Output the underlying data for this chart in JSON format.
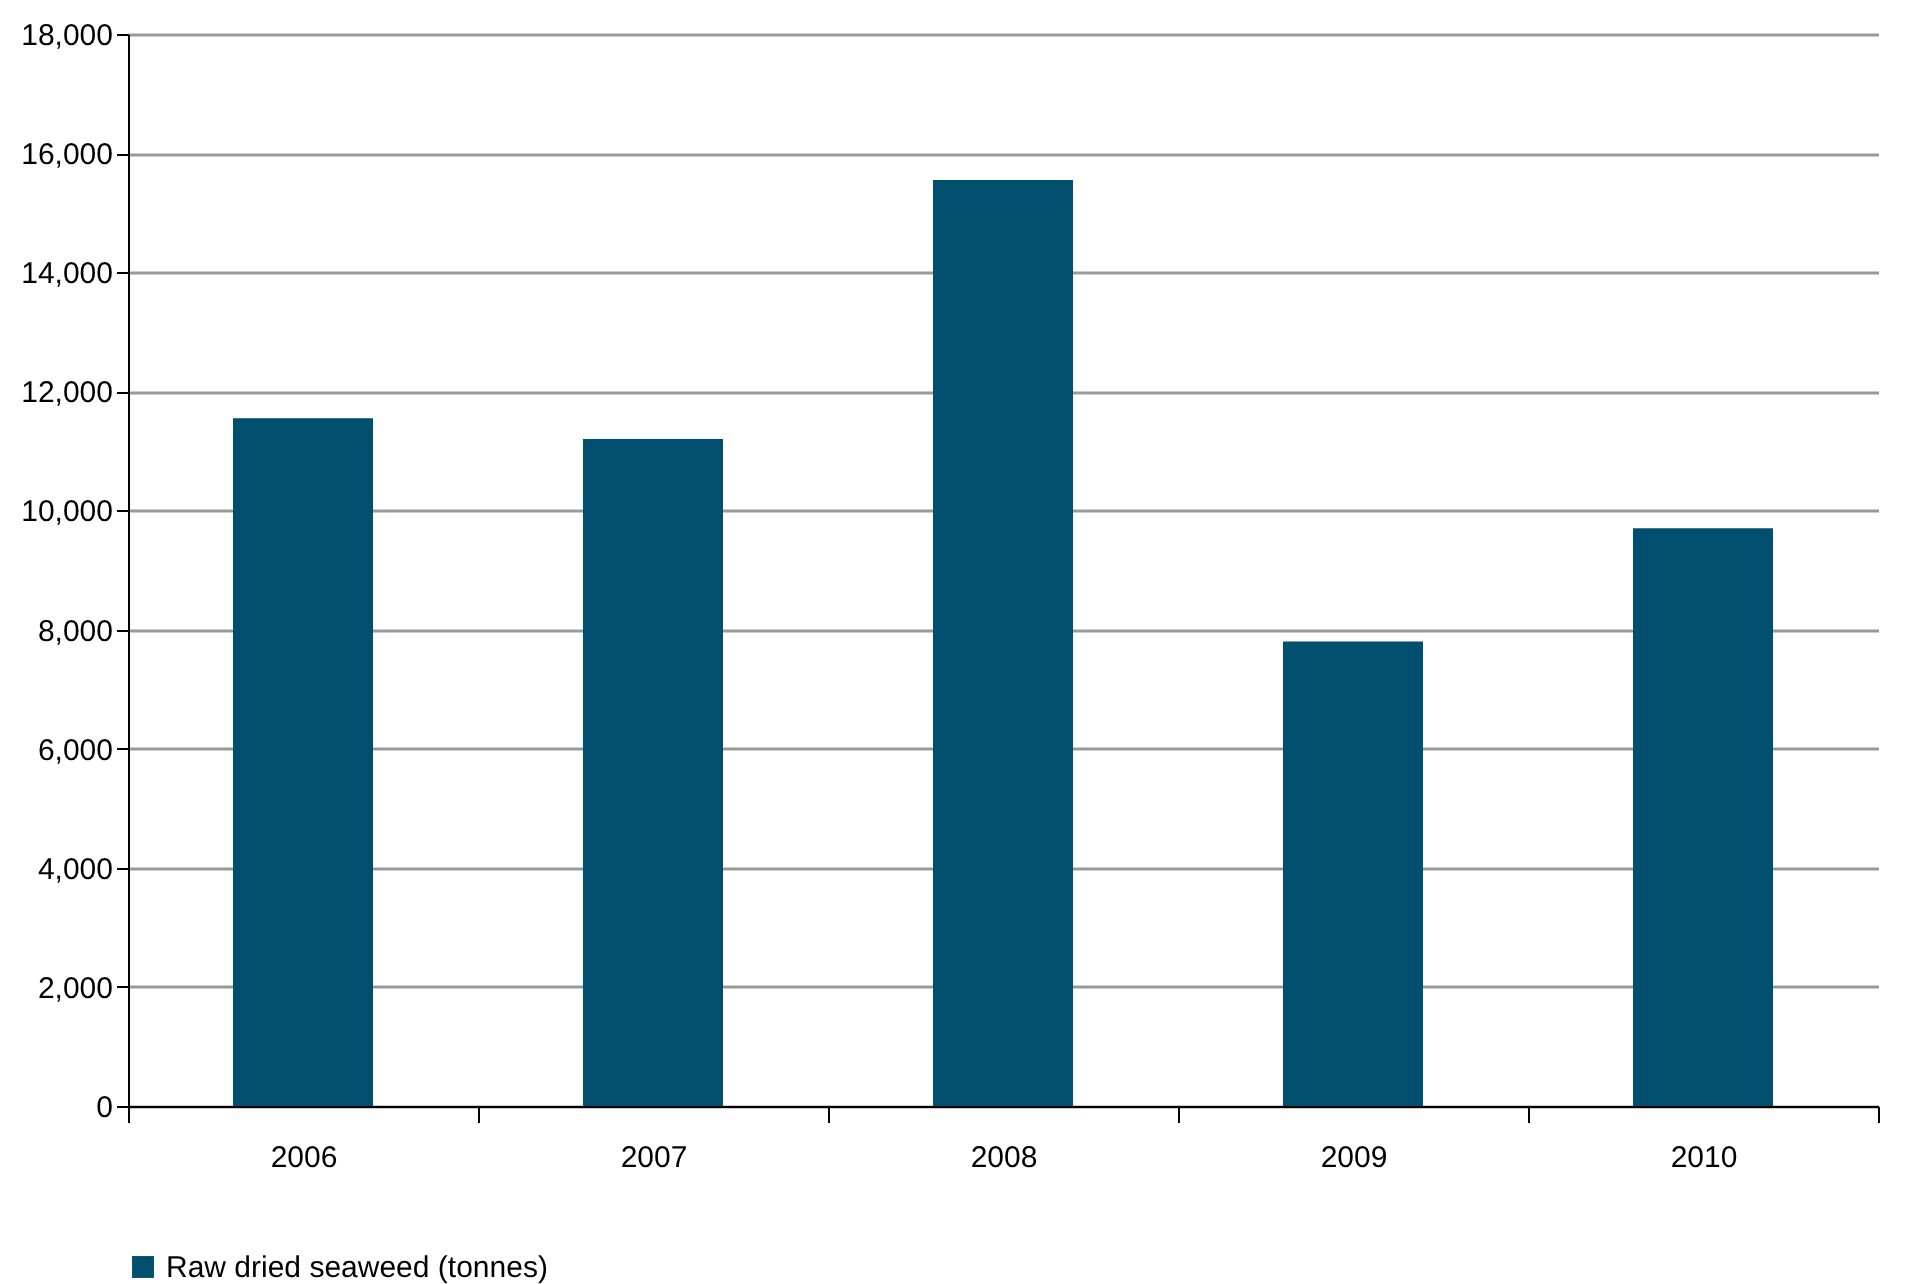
{
  "chart_data": {
    "type": "bar",
    "categories": [
      "2006",
      "2007",
      "2008",
      "2009",
      "2010"
    ],
    "series": [
      {
        "name": "Raw dried seaweed (tonnes)",
        "color": "#004f6e",
        "values": [
          11550,
          11200,
          15550,
          7800,
          9700
        ]
      }
    ],
    "ylim": [
      0,
      18000
    ],
    "yticks": [
      {
        "value": 0,
        "label": "0"
      },
      {
        "value": 2000,
        "label": "2,000"
      },
      {
        "value": 4000,
        "label": "4,000"
      },
      {
        "value": 6000,
        "label": "6,000"
      },
      {
        "value": 8000,
        "label": "8,000"
      },
      {
        "value": 10000,
        "label": "10,000"
      },
      {
        "value": 12000,
        "label": "12,000"
      },
      {
        "value": 14000,
        "label": "14,000"
      },
      {
        "value": 16000,
        "label": "16,000"
      },
      {
        "value": 18000,
        "label": "18,000"
      }
    ],
    "grid": "y",
    "legend": "bottom"
  }
}
